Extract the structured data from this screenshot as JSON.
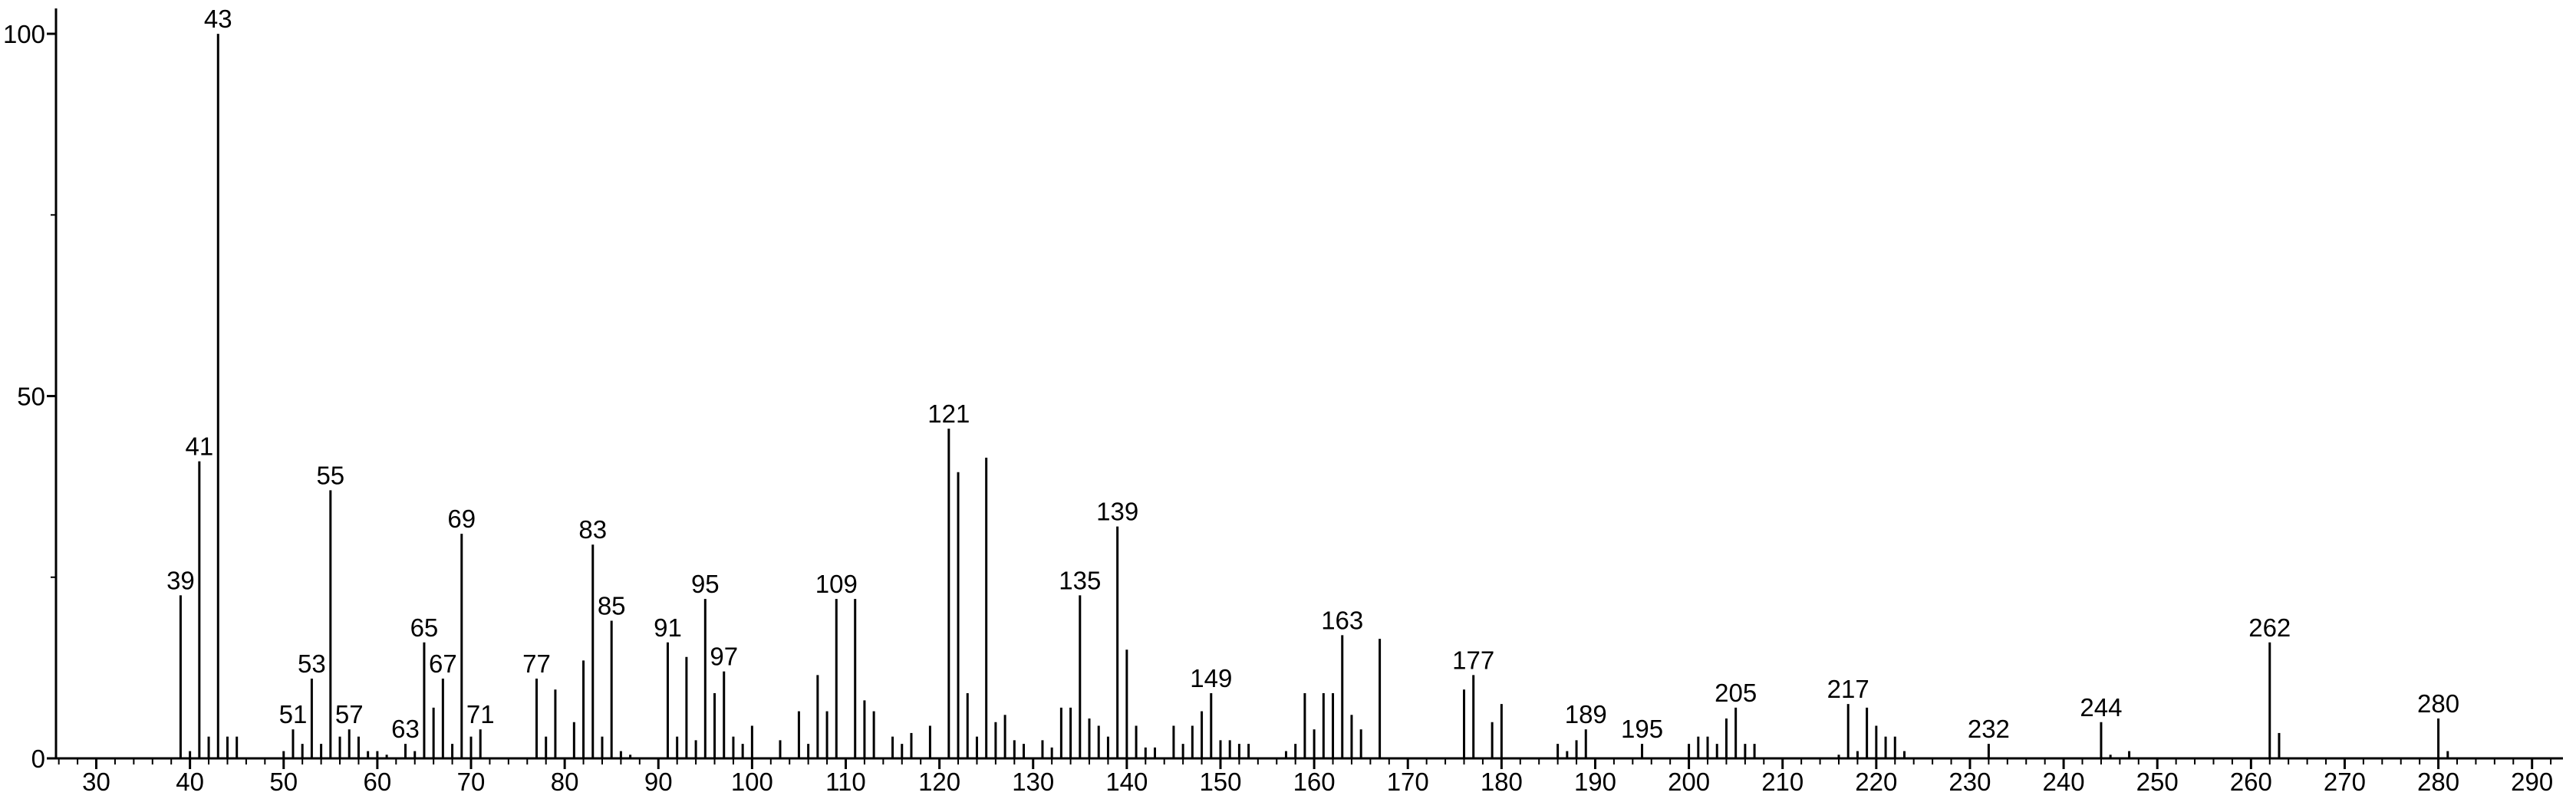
{
  "chart_data": {
    "type": "stem",
    "x": [
      39,
      40,
      41,
      42,
      43,
      44,
      45,
      50,
      51,
      52,
      53,
      54,
      55,
      56,
      57,
      58,
      59,
      60,
      61,
      63,
      64,
      65,
      66,
      67,
      68,
      69,
      70,
      71,
      77,
      78,
      79,
      81,
      82,
      83,
      84,
      85,
      86,
      87,
      91,
      92,
      93,
      94,
      95,
      96,
      97,
      98,
      99,
      100,
      103,
      105,
      106,
      107,
      108,
      109,
      111,
      112,
      113,
      115,
      116,
      117,
      119,
      121,
      122,
      123,
      124,
      125,
      126,
      127,
      128,
      129,
      131,
      132,
      133,
      134,
      135,
      136,
      137,
      138,
      139,
      140,
      141,
      142,
      143,
      145,
      146,
      147,
      148,
      149,
      150,
      151,
      152,
      153,
      157,
      158,
      159,
      160,
      161,
      162,
      163,
      164,
      165,
      167,
      176,
      177,
      179,
      180,
      186,
      187,
      188,
      189,
      195,
      200,
      201,
      202,
      203,
      204,
      205,
      206,
      207,
      216,
      217,
      218,
      219,
      220,
      221,
      222,
      223,
      232,
      244,
      245,
      247,
      262,
      263,
      280,
      281
    ],
    "values": [
      22.5,
      1,
      41,
      3,
      100,
      3,
      3,
      1,
      4,
      2,
      11,
      2,
      37,
      3,
      4,
      3,
      1,
      1,
      0.5,
      2,
      1,
      16,
      7,
      11,
      2,
      31,
      3,
      4,
      11,
      3,
      9.5,
      5,
      13.5,
      29.5,
      3,
      19,
      1,
      0.5,
      16,
      3,
      14,
      2.5,
      22,
      9,
      12,
      3,
      2,
      4.5,
      2.5,
      6.5,
      2,
      11.5,
      6.5,
      22,
      22,
      8,
      6.5,
      3,
      2,
      3.5,
      4.5,
      45.5,
      39.5,
      9,
      3,
      41.5,
      5,
      6,
      2.5,
      2,
      2.5,
      1.5,
      7,
      7,
      22.5,
      5.5,
      4.5,
      3,
      32,
      15,
      4.5,
      1.5,
      1.5,
      4.5,
      2,
      4.5,
      6.5,
      9,
      2.5,
      2.5,
      2,
      2,
      1,
      2,
      9,
      4,
      9,
      9,
      17,
      6,
      4,
      16.5,
      9.5,
      11.5,
      5,
      7.5,
      2,
      1,
      2.5,
      4,
      2,
      2,
      3,
      3,
      2,
      5.5,
      7,
      2,
      2,
      0.5,
      7.5,
      1,
      7,
      4.5,
      3,
      3,
      1,
      2,
      5,
      0.5,
      1,
      16,
      3.5,
      5.5,
      1
    ],
    "annotations": [
      39,
      41,
      43,
      51,
      53,
      55,
      57,
      63,
      65,
      67,
      69,
      71,
      77,
      83,
      85,
      91,
      95,
      97,
      109,
      121,
      135,
      139,
      149,
      163,
      177,
      189,
      195,
      205,
      217,
      232,
      244,
      262,
      280
    ],
    "color": "#000000",
    "xlim": [
      25.7,
      293.3
    ],
    "xticks": [
      30,
      40,
      50,
      60,
      70,
      80,
      90,
      100,
      110,
      120,
      130,
      140,
      150,
      160,
      170,
      180,
      190,
      200,
      210,
      220,
      230,
      240,
      250,
      260,
      270,
      280,
      290
    ],
    "xminor": [
      26,
      28,
      32,
      34,
      36,
      38,
      42,
      44,
      46,
      48,
      52,
      54,
      56,
      58,
      62,
      64,
      66,
      68,
      72,
      74,
      76,
      78,
      82,
      84,
      86,
      88,
      92,
      94,
      96,
      98,
      102,
      104,
      106,
      108,
      112,
      114,
      116,
      118,
      122,
      124,
      126,
      128,
      132,
      134,
      136,
      138,
      142,
      144,
      146,
      148,
      152,
      154,
      156,
      158,
      162,
      164,
      166,
      168,
      172,
      174,
      176,
      178,
      182,
      184,
      186,
      188,
      192,
      194,
      196,
      198,
      202,
      204,
      206,
      208,
      212,
      214,
      216,
      218,
      222,
      224,
      226,
      228,
      232,
      234,
      236,
      238,
      242,
      244,
      246,
      248,
      252,
      254,
      256,
      258,
      262,
      264,
      266,
      268,
      272,
      274,
      276,
      278,
      282,
      284,
      286,
      288,
      292
    ],
    "ylim": [
      0,
      103.5
    ],
    "yticks": [
      0,
      50,
      100
    ],
    "yminor": [
      25,
      75
    ]
  }
}
